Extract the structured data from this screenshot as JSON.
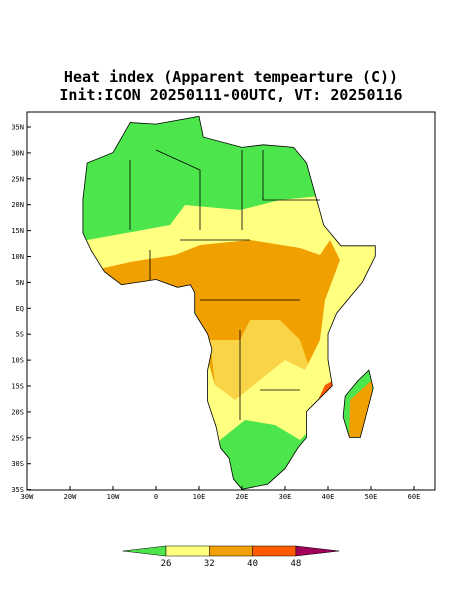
{
  "title": "Heat index (Apparent tempearture (C))",
  "subtitle": "Init:ICON 20250111-00UTC, VT: 20250116",
  "lat_labels": [
    "35N",
    "30N",
    "25N",
    "20N",
    "15N",
    "10N",
    "5N",
    "EQ",
    "5S",
    "10S",
    "15S",
    "20S",
    "25S",
    "30S",
    "35S"
  ],
  "lon_labels": [
    "30W",
    "20W",
    "10W",
    "0",
    "10E",
    "20E",
    "30E",
    "40E",
    "50E",
    "60E"
  ],
  "colorbar": {
    "levels": [
      26,
      32,
      40,
      48
    ],
    "colors": [
      "#4ce64c",
      "#ffff80",
      "#f0a000",
      "#ff5a00",
      "#a0005a"
    ]
  }
}
